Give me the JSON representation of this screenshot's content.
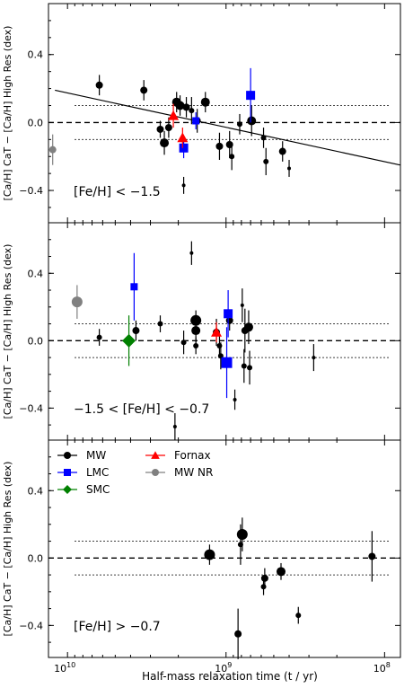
{
  "figure": {
    "xlabel": "Half-mass relaxation time (t / yr)",
    "x_scale": "log",
    "x_ticks": [
      {
        "label": "10",
        "exp": "10",
        "value": 10000000000
      },
      {
        "label": "10",
        "exp": "9",
        "value": 1000000000
      },
      {
        "label": "10",
        "exp": "8",
        "value": 100000000
      }
    ],
    "colors": {
      "MW": "#000000",
      "LMC": "#0000ff",
      "SMC": "#008000",
      "Fornax": "#ff0000",
      "MW NR": "#808080"
    }
  },
  "chart_data": [
    {
      "type": "scatter",
      "title": "",
      "annotation": "[Fe/H] < −1.5",
      "ylabel": "[Ca/H] CaT − [Ca/H] High Res (dex)",
      "ylim": [
        -0.59,
        0.7
      ],
      "y_ticks": [
        {
          "value": 0.4,
          "label": "0.4"
        },
        {
          "value": 0.0,
          "label": "0.0"
        },
        {
          "value": -0.4,
          "label": "−0.4"
        }
      ],
      "fit_line": {
        "x": [
          12000000000,
          80000000
        ],
        "y": [
          0.19,
          -0.25
        ]
      },
      "ref_lines": {
        "zero": 0.0,
        "upper": 0.1,
        "lower": -0.1
      },
      "points": [
        {
          "group": "MW NR",
          "marker": "circle",
          "x": 12400000000,
          "y": -0.16,
          "err": 0.09,
          "size": 4
        },
        {
          "group": "MW",
          "marker": "circle",
          "x": 6300000000,
          "y": 0.22,
          "err": 0.06,
          "size": 4
        },
        {
          "group": "MW",
          "marker": "circle",
          "x": 3300000000,
          "y": 0.19,
          "err": 0.06,
          "size": 4
        },
        {
          "group": "MW",
          "marker": "circle",
          "x": 2600000000,
          "y": -0.04,
          "err": 0.05,
          "size": 4
        },
        {
          "group": "MW",
          "marker": "circle",
          "x": 2450000000,
          "y": -0.12,
          "err": 0.07,
          "size": 5
        },
        {
          "group": "MW",
          "marker": "circle",
          "x": 2300000000,
          "y": -0.03,
          "err": 0.06,
          "size": 4
        },
        {
          "group": "MW",
          "marker": "circle",
          "x": 2050000000,
          "y": 0.12,
          "err": 0.06,
          "size": 5
        },
        {
          "group": "MW",
          "marker": "circle",
          "x": 1950000000,
          "y": 0.1,
          "err": 0.06,
          "size": 5
        },
        {
          "group": "MW",
          "marker": "circle",
          "x": 1850000000,
          "y": -0.37,
          "err": 0.05,
          "size": 2
        },
        {
          "group": "MW",
          "marker": "circle",
          "x": 1780000000,
          "y": 0.09,
          "err": 0.06,
          "size": 4
        },
        {
          "group": "MW",
          "marker": "circle",
          "x": 1650000000,
          "y": 0.07,
          "err": 0.08,
          "size": 3
        },
        {
          "group": "MW",
          "marker": "circle",
          "x": 1520000000,
          "y": 0.01,
          "err": 0.07,
          "size": 4
        },
        {
          "group": "MW",
          "marker": "circle",
          "x": 1350000000,
          "y": 0.12,
          "err": 0.06,
          "size": 5
        },
        {
          "group": "MW",
          "marker": "circle",
          "x": 1100000000,
          "y": -0.14,
          "err": 0.08,
          "size": 4
        },
        {
          "group": "MW",
          "marker": "circle",
          "x": 950000000,
          "y": -0.13,
          "err": 0.08,
          "size": 4
        },
        {
          "group": "MW",
          "marker": "circle",
          "x": 920000000,
          "y": -0.2,
          "err": 0.08,
          "size": 3
        },
        {
          "group": "MW",
          "marker": "circle",
          "x": 820000000,
          "y": -0.01,
          "err": 0.06,
          "size": 3
        },
        {
          "group": "MW",
          "marker": "circle",
          "x": 690000000,
          "y": 0.01,
          "err": 0.09,
          "size": 5
        },
        {
          "group": "MW",
          "marker": "circle",
          "x": 580000000,
          "y": -0.09,
          "err": 0.06,
          "size": 3
        },
        {
          "group": "MW",
          "marker": "circle",
          "x": 560000000,
          "y": -0.23,
          "err": 0.08,
          "size": 3
        },
        {
          "group": "MW",
          "marker": "circle",
          "x": 440000000,
          "y": -0.17,
          "err": 0.06,
          "size": 4
        },
        {
          "group": "MW",
          "marker": "circle",
          "x": 400000000,
          "y": -0.27,
          "err": 0.05,
          "size": 2
        },
        {
          "group": "LMC",
          "marker": "square",
          "x": 1850000000,
          "y": -0.15,
          "err": 0.06,
          "size": 5
        },
        {
          "group": "LMC",
          "marker": "square",
          "x": 1550000000,
          "y": 0.01,
          "err": 0.05,
          "size": 4
        },
        {
          "group": "LMC",
          "marker": "square",
          "x": 700000000,
          "y": 0.16,
          "err": 0.16,
          "size": 5
        },
        {
          "group": "Fornax",
          "marker": "triangle",
          "x": 2150000000,
          "y": 0.04,
          "err": 0.07,
          "size": 5
        },
        {
          "group": "Fornax",
          "marker": "triangle",
          "x": 1880000000,
          "y": -0.09,
          "err": 0.06,
          "size": 5
        }
      ]
    },
    {
      "type": "scatter",
      "title": "",
      "annotation": "−1.5 < [Fe/H] < −0.7",
      "ylabel": "[Ca/H] CaT − [Ca/H] High Res (dex)",
      "ylim": [
        -0.59,
        0.7
      ],
      "y_ticks": [
        {
          "value": 0.4,
          "label": "0.4"
        },
        {
          "value": 0.0,
          "label": "0.0"
        },
        {
          "value": -0.4,
          "label": "−0.4"
        }
      ],
      "ref_lines": {
        "zero": 0.0,
        "upper": 0.1,
        "lower": -0.1
      },
      "points": [
        {
          "group": "MW NR",
          "marker": "circle",
          "x": 8700000000,
          "y": 0.23,
          "err": 0.1,
          "size": 6
        },
        {
          "group": "MW",
          "marker": "circle",
          "x": 6300000000,
          "y": 0.02,
          "err": 0.05,
          "size": 3
        },
        {
          "group": "MW",
          "marker": "circle",
          "x": 3700000000,
          "y": 0.06,
          "err": 0.06,
          "size": 4
        },
        {
          "group": "MW",
          "marker": "circle",
          "x": 2600000000,
          "y": 0.1,
          "err": 0.05,
          "size": 3
        },
        {
          "group": "MW",
          "marker": "circle",
          "x": 2100000000,
          "y": -0.51,
          "err": 0.08,
          "size": 2
        },
        {
          "group": "MW",
          "marker": "circle",
          "x": 1850000000,
          "y": -0.01,
          "err": 0.07,
          "size": 3
        },
        {
          "group": "MW",
          "marker": "circle",
          "x": 1650000000,
          "y": 0.52,
          "err": 0.07,
          "size": 2
        },
        {
          "group": "MW",
          "marker": "circle",
          "x": 1550000000,
          "y": 0.12,
          "err": 0.06,
          "size": 6
        },
        {
          "group": "MW",
          "marker": "circle",
          "x": 1550000000,
          "y": 0.06,
          "err": 0.07,
          "size": 5
        },
        {
          "group": "MW",
          "marker": "circle",
          "x": 1550000000,
          "y": -0.03,
          "err": 0.05,
          "size": 3
        },
        {
          "group": "MW",
          "marker": "circle",
          "x": 1150000000,
          "y": 0.05,
          "err": 0.08,
          "size": 4
        },
        {
          "group": "MW",
          "marker": "circle",
          "x": 1100000000,
          "y": -0.03,
          "err": 0.06,
          "size": 3
        },
        {
          "group": "MW",
          "marker": "circle",
          "x": 1080000000,
          "y": -0.09,
          "err": 0.08,
          "size": 3
        },
        {
          "group": "MW",
          "marker": "circle",
          "x": 950000000,
          "y": 0.12,
          "err": 0.06,
          "size": 4
        },
        {
          "group": "MW",
          "marker": "circle",
          "x": 880000000,
          "y": -0.35,
          "err": 0.06,
          "size": 2
        },
        {
          "group": "MW",
          "marker": "circle",
          "x": 790000000,
          "y": 0.21,
          "err": 0.1,
          "size": 2
        },
        {
          "group": "MW",
          "marker": "circle",
          "x": 770000000,
          "y": -0.15,
          "err": 0.1,
          "size": 3
        },
        {
          "group": "MW",
          "marker": "circle",
          "x": 760000000,
          "y": 0.06,
          "err": 0.13,
          "size": 4
        },
        {
          "group": "MW",
          "marker": "circle",
          "x": 720000000,
          "y": 0.08,
          "err": 0.1,
          "size": 5
        },
        {
          "group": "MW",
          "marker": "circle",
          "x": 710000000,
          "y": -0.16,
          "err": 0.1,
          "size": 3
        },
        {
          "group": "MW",
          "marker": "circle",
          "x": 280000000,
          "y": -0.1,
          "err": 0.08,
          "size": 2
        },
        {
          "group": "SMC",
          "marker": "diamond",
          "x": 4100000000,
          "y": 0.0,
          "err": 0.15,
          "size": 6
        },
        {
          "group": "LMC",
          "marker": "square",
          "x": 3800000000,
          "y": 0.32,
          "err": 0.2,
          "size": 4
        },
        {
          "group": "LMC",
          "marker": "square",
          "x": 970000000,
          "y": 0.16,
          "err": 0.14,
          "size": 5
        },
        {
          "group": "LMC",
          "marker": "square",
          "x": 990000000,
          "y": -0.13,
          "err": 0.21,
          "size": 6
        },
        {
          "group": "Fornax",
          "marker": "triangle",
          "x": 1150000000,
          "y": 0.05,
          "err": 0.06,
          "size": 5
        }
      ]
    },
    {
      "type": "scatter",
      "title": "",
      "annotation": "[Fe/H] > −0.7",
      "ylabel": "[Ca/H] CaT − [Ca/H] High Res (dex)",
      "ylim": [
        -0.59,
        0.7
      ],
      "y_ticks": [
        {
          "value": 0.4,
          "label": "0.4"
        },
        {
          "value": 0.0,
          "label": "0.0"
        },
        {
          "value": -0.4,
          "label": "−0.4"
        }
      ],
      "ref_lines": {
        "zero": 0.0,
        "upper": 0.1,
        "lower": -0.1
      },
      "legend": {
        "placement": "top-left",
        "entries": [
          {
            "label": "MW",
            "group": "MW",
            "marker": "circle"
          },
          {
            "label": "LMC",
            "group": "LMC",
            "marker": "square"
          },
          {
            "label": "SMC",
            "group": "SMC",
            "marker": "diamond"
          },
          {
            "label": "Fornax",
            "group": "Fornax",
            "marker": "triangle"
          },
          {
            "label": "MW NR",
            "group": "MW NR",
            "marker": "circle"
          }
        ]
      },
      "points": [
        {
          "group": "MW",
          "marker": "circle",
          "x": 1270000000,
          "y": 0.02,
          "err": 0.06,
          "size": 6
        },
        {
          "group": "MW",
          "marker": "circle",
          "x": 840000000,
          "y": -0.45,
          "err": 0.15,
          "size": 4
        },
        {
          "group": "MW",
          "marker": "circle",
          "x": 810000000,
          "y": 0.08,
          "err": 0.12,
          "size": 3
        },
        {
          "group": "MW",
          "marker": "circle",
          "x": 790000000,
          "y": 0.14,
          "err": 0.1,
          "size": 6
        },
        {
          "group": "MW",
          "marker": "circle",
          "x": 580000000,
          "y": -0.17,
          "err": 0.05,
          "size": 3
        },
        {
          "group": "MW",
          "marker": "circle",
          "x": 570000000,
          "y": -0.12,
          "err": 0.06,
          "size": 4
        },
        {
          "group": "MW",
          "marker": "circle",
          "x": 450000000,
          "y": -0.08,
          "err": 0.05,
          "size": 5
        },
        {
          "group": "MW",
          "marker": "circle",
          "x": 350000000,
          "y": -0.34,
          "err": 0.05,
          "size": 3
        },
        {
          "group": "MW",
          "marker": "circle",
          "x": 120000000,
          "y": 0.01,
          "err": 0.15,
          "size": 4
        }
      ]
    }
  ]
}
